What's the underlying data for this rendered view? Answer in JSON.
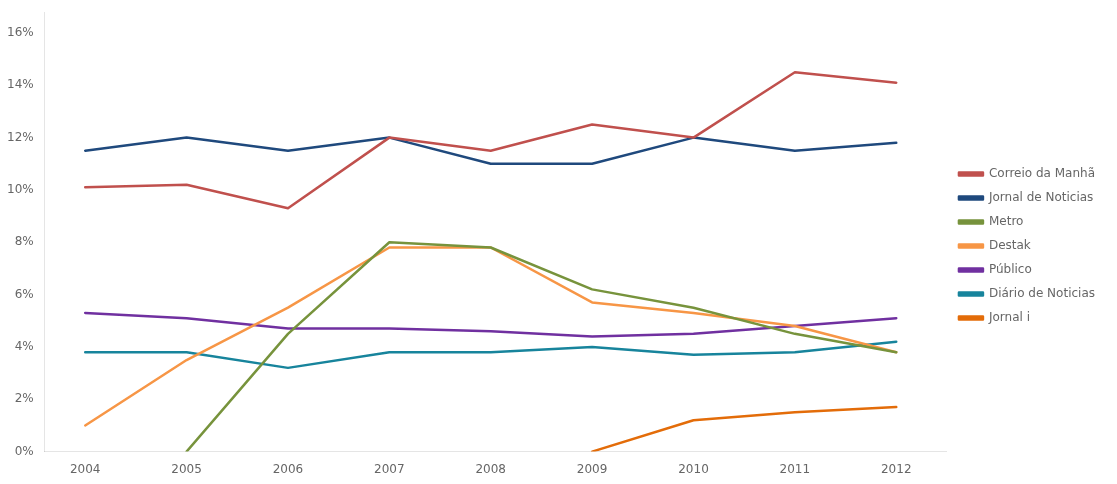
{
  "chart_data": {
    "type": "line",
    "x": [
      2004,
      2005,
      2006,
      2007,
      2008,
      2009,
      2010,
      2011,
      2012
    ],
    "series": [
      {
        "name": "Correio da Manhã",
        "color": "#c0504d",
        "values": [
          0.101,
          0.102,
          0.093,
          0.12,
          0.115,
          0.125,
          0.12,
          0.145,
          0.141
        ]
      },
      {
        "name": "Jornal de Noticias",
        "color": "#1f497d",
        "values": [
          0.115,
          0.12,
          0.115,
          0.12,
          0.11,
          0.11,
          0.12,
          0.115,
          0.118
        ]
      },
      {
        "name": "Metro",
        "color": "#77933c",
        "values": [
          null,
          0.0,
          0.045,
          0.08,
          0.078,
          0.062,
          0.055,
          0.045,
          0.038
        ]
      },
      {
        "name": "Destak",
        "color": "#f79646",
        "values": [
          0.01,
          0.035,
          0.055,
          0.078,
          0.078,
          0.057,
          0.053,
          0.048,
          0.038
        ]
      },
      {
        "name": "Público",
        "color": "#7030a0",
        "values": [
          0.053,
          0.051,
          0.047,
          0.047,
          0.046,
          0.044,
          0.045,
          0.048,
          0.051
        ]
      },
      {
        "name": "Diário de Noticias",
        "color": "#17849c",
        "values": [
          0.038,
          0.038,
          0.032,
          0.038,
          0.038,
          0.04,
          0.037,
          0.038,
          0.042
        ]
      },
      {
        "name": "Jornal i",
        "color": "#e36c09",
        "values": [
          null,
          null,
          null,
          null,
          null,
          0.0,
          0.012,
          0.015,
          0.017
        ]
      }
    ],
    "xlim": [
      2003.6,
      2012.5
    ],
    "xticks": [
      2004,
      2005,
      2006,
      2007,
      2008,
      2009,
      2010,
      2011,
      2012
    ],
    "ylim": [
      0,
      0.168
    ],
    "yticks": [
      {
        "value": 0.0,
        "label": "0%"
      },
      {
        "value": 0.02,
        "label": "2%"
      },
      {
        "value": 0.04,
        "label": "4%"
      },
      {
        "value": 0.06,
        "label": "6%"
      },
      {
        "value": 0.08,
        "label": "8%"
      },
      {
        "value": 0.1,
        "label": "10%"
      },
      {
        "value": 0.12,
        "label": "12%"
      },
      {
        "value": 0.14,
        "label": "14%"
      },
      {
        "value": 0.16,
        "label": "16%"
      }
    ],
    "grid": false,
    "legend": "right"
  }
}
